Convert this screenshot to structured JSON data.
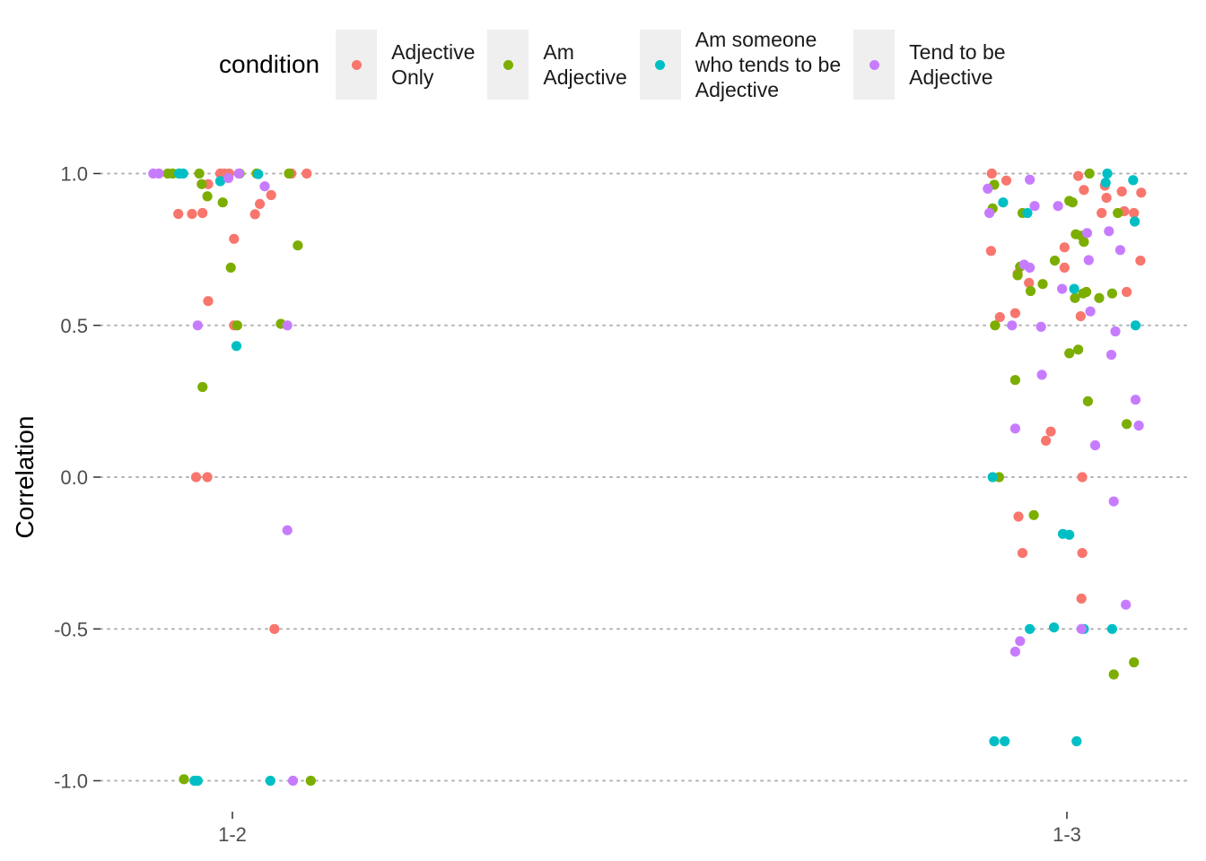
{
  "legend": {
    "title": "condition",
    "items": [
      {
        "label": "Adjective\nOnly",
        "color": "#F8766D"
      },
      {
        "label": "Am\nAdjective",
        "color": "#7CAE00"
      },
      {
        "label": "Am someone\nwho tends to be\nAdjective",
        "color": "#00BFC4"
      },
      {
        "label": "Tend to be\nAdjective",
        "color": "#C77CFF"
      }
    ]
  },
  "chart_data": {
    "type": "scatter",
    "title": "",
    "xlabel": "",
    "ylabel": "Correlation",
    "categories": [
      "1-2",
      "1-3"
    ],
    "ylim": [
      -1.1,
      1.1
    ],
    "yticks": [
      1.0,
      0.5,
      0.0,
      -0.5,
      -1.0
    ],
    "ytick_labels": [
      "1.0",
      "0.5",
      "0.0",
      "-0.5",
      "-1.0"
    ],
    "grid": "horizontal dotted at y ticks",
    "legend_position": "top",
    "series": [
      {
        "name": "Adjective Only",
        "color": "#F8766D",
        "points": [
          [
            "1-2",
            -0.067,
            0.867
          ],
          [
            "1-2",
            -0.05,
            0.867
          ],
          [
            "1-2",
            -0.037,
            0.87
          ],
          [
            "1-2",
            -0.03,
            0.58
          ],
          [
            "1-2",
            -0.03,
            0.965
          ],
          [
            "1-2",
            -0.045,
            0.0
          ],
          [
            "1-2",
            -0.031,
            0.0
          ],
          [
            "1-2",
            -0.015,
            1.0
          ],
          [
            "1-2",
            -0.01,
            1.0
          ],
          [
            "1-2",
            -0.004,
            1.0
          ],
          [
            "1-2",
            0.002,
            0.785
          ],
          [
            "1-2",
            0.002,
            0.5
          ],
          [
            "1-2",
            0.028,
            0.866
          ],
          [
            "1-2",
            0.034,
            0.9
          ],
          [
            "1-2",
            0.048,
            0.929
          ],
          [
            "1-2",
            0.073,
            1.0
          ],
          [
            "1-2",
            0.092,
            1.0
          ],
          [
            "1-2",
            0.052,
            -0.5
          ],
          [
            "1-3",
            -0.094,
            0.745
          ],
          [
            "1-3",
            -0.093,
            1.0
          ],
          [
            "1-3",
            -0.083,
            0.527
          ],
          [
            "1-3",
            -0.075,
            0.977
          ],
          [
            "1-3",
            -0.06,
            -0.13
          ],
          [
            "1-3",
            -0.061,
            0.67
          ],
          [
            "1-3",
            -0.064,
            0.54
          ],
          [
            "1-3",
            -0.055,
            -0.25
          ],
          [
            "1-3",
            -0.047,
            0.64
          ],
          [
            "1-3",
            -0.02,
            0.15
          ],
          [
            "1-3",
            -0.026,
            0.12
          ],
          [
            "1-3",
            -0.003,
            0.69
          ],
          [
            "1-3",
            -0.003,
            0.757
          ],
          [
            "1-3",
            0.017,
            0.53
          ],
          [
            "1-3",
            0.014,
            0.992
          ],
          [
            "1-3",
            0.021,
            0.946
          ],
          [
            "1-3",
            0.019,
            0.0
          ],
          [
            "1-3",
            0.019,
            -0.25
          ],
          [
            "1-3",
            0.018,
            -0.4
          ],
          [
            "1-3",
            0.043,
            0.87
          ],
          [
            "1-3",
            0.047,
            0.96
          ],
          [
            "1-3",
            0.049,
            0.92
          ],
          [
            "1-3",
            0.068,
            0.941
          ],
          [
            "1-3",
            0.071,
            0.876
          ],
          [
            "1-3",
            0.074,
            0.61
          ],
          [
            "1-3",
            0.083,
            0.87
          ],
          [
            "1-3",
            0.092,
            0.937
          ],
          [
            "1-3",
            0.091,
            0.713
          ]
        ]
      },
      {
        "name": "Am Adjective",
        "color": "#7CAE00",
        "points": [
          [
            "1-2",
            -0.08,
            1.0
          ],
          [
            "1-2",
            -0.074,
            1.0
          ],
          [
            "1-2",
            -0.066,
            1.0
          ],
          [
            "1-2",
            -0.041,
            1.0
          ],
          [
            "1-2",
            -0.038,
            0.965
          ],
          [
            "1-2",
            -0.037,
            0.297
          ],
          [
            "1-2",
            -0.031,
            0.925
          ],
          [
            "1-2",
            -0.012,
            0.905
          ],
          [
            "1-2",
            -0.002,
            0.69
          ],
          [
            "1-2",
            0.006,
            0.5
          ],
          [
            "1-2",
            0.009,
            1.0
          ],
          [
            "1-2",
            0.03,
            1.0
          ],
          [
            "1-2",
            0.07,
            1.0
          ],
          [
            "1-2",
            0.06,
            0.505
          ],
          [
            "1-2",
            0.081,
            0.763
          ],
          [
            "1-2",
            0.097,
            -1.0
          ],
          [
            "1-2",
            -0.06,
            -0.995
          ],
          [
            "1-3",
            -0.09,
            0.963
          ],
          [
            "1-3",
            -0.092,
            0.885
          ],
          [
            "1-3",
            -0.089,
            0.5
          ],
          [
            "1-3",
            -0.084,
            0.0
          ],
          [
            "1-3",
            -0.064,
            0.32
          ],
          [
            "1-3",
            -0.061,
            0.665
          ],
          [
            "1-3",
            -0.058,
            0.693
          ],
          [
            "1-3",
            -0.055,
            0.87
          ],
          [
            "1-3",
            -0.045,
            0.613
          ],
          [
            "1-3",
            -0.041,
            -0.125
          ],
          [
            "1-3",
            -0.03,
            0.636
          ],
          [
            "1-3",
            -0.015,
            0.713
          ],
          [
            "1-3",
            0.003,
            0.408
          ],
          [
            "1-3",
            0.003,
            0.91
          ],
          [
            "1-3",
            0.007,
            0.905
          ],
          [
            "1-3",
            0.01,
            0.59
          ],
          [
            "1-3",
            0.011,
            0.8
          ],
          [
            "1-3",
            0.014,
            0.42
          ],
          [
            "1-3",
            0.018,
            0.795
          ],
          [
            "1-3",
            0.02,
            0.605
          ],
          [
            "1-3",
            0.021,
            0.775
          ],
          [
            "1-3",
            0.024,
            0.61
          ],
          [
            "1-3",
            0.026,
            0.25
          ],
          [
            "1-3",
            0.028,
            1.0
          ],
          [
            "1-3",
            0.04,
            0.59
          ],
          [
            "1-3",
            0.056,
            0.605
          ],
          [
            "1-3",
            0.058,
            -0.65
          ],
          [
            "1-3",
            0.063,
            0.87
          ],
          [
            "1-3",
            0.074,
            0.175
          ],
          [
            "1-3",
            0.083,
            -0.61
          ]
        ]
      },
      {
        "name": "Am someone who tends to be Adjective",
        "color": "#00BFC4",
        "points": [
          [
            "1-2",
            -0.066,
            1.0
          ],
          [
            "1-2",
            -0.061,
            1.0
          ],
          [
            "1-2",
            -0.015,
            0.975
          ],
          [
            "1-2",
            0.032,
            0.998
          ],
          [
            "1-2",
            0.005,
            0.432
          ],
          [
            "1-2",
            -0.047,
            -1.0
          ],
          [
            "1-2",
            -0.043,
            -1.0
          ],
          [
            "1-2",
            0.047,
            -1.0
          ],
          [
            "1-3",
            -0.092,
            0.0
          ],
          [
            "1-3",
            -0.09,
            -0.87
          ],
          [
            "1-3",
            -0.077,
            -0.87
          ],
          [
            "1-3",
            -0.079,
            0.905
          ],
          [
            "1-3",
            -0.049,
            0.87
          ],
          [
            "1-3",
            -0.046,
            -0.5
          ],
          [
            "1-3",
            -0.016,
            -0.495
          ],
          [
            "1-3",
            -0.005,
            -0.187
          ],
          [
            "1-3",
            0.003,
            -0.19
          ],
          [
            "1-3",
            0.012,
            -0.87
          ],
          [
            "1-3",
            0.021,
            -0.5
          ],
          [
            "1-3",
            0.009,
            0.62
          ],
          [
            "1-3",
            0.048,
            0.97
          ],
          [
            "1-3",
            0.05,
            1.0
          ],
          [
            "1-3",
            0.056,
            -0.5
          ],
          [
            "1-3",
            0.082,
            0.978
          ],
          [
            "1-3",
            0.084,
            0.842
          ],
          [
            "1-3",
            0.085,
            0.5
          ]
        ]
      },
      {
        "name": "Tend to be Adjective",
        "color": "#C77CFF",
        "points": [
          [
            "1-2",
            -0.098,
            1.0
          ],
          [
            "1-2",
            -0.091,
            1.0
          ],
          [
            "1-2",
            -0.043,
            0.5
          ],
          [
            "1-2",
            -0.005,
            0.985
          ],
          [
            "1-2",
            0.008,
            1.0
          ],
          [
            "1-2",
            0.04,
            0.958
          ],
          [
            "1-2",
            0.068,
            0.5
          ],
          [
            "1-2",
            0.068,
            -0.175
          ],
          [
            "1-2",
            0.075,
            -1.0
          ],
          [
            "1-3",
            -0.098,
            0.95
          ],
          [
            "1-3",
            -0.096,
            0.87
          ],
          [
            "1-3",
            -0.068,
            0.5
          ],
          [
            "1-3",
            -0.064,
            0.16
          ],
          [
            "1-3",
            -0.064,
            -0.575
          ],
          [
            "1-3",
            -0.058,
            -0.54
          ],
          [
            "1-3",
            -0.053,
            0.7
          ],
          [
            "1-3",
            -0.046,
            0.98
          ],
          [
            "1-3",
            -0.046,
            0.69
          ],
          [
            "1-3",
            -0.04,
            0.893
          ],
          [
            "1-3",
            -0.032,
            0.495
          ],
          [
            "1-3",
            -0.031,
            0.337
          ],
          [
            "1-3",
            -0.011,
            0.893
          ],
          [
            "1-3",
            -0.006,
            0.62
          ],
          [
            "1-3",
            0.018,
            -0.5
          ],
          [
            "1-3",
            0.025,
            0.804
          ],
          [
            "1-3",
            0.027,
            0.715
          ],
          [
            "1-3",
            0.029,
            0.546
          ],
          [
            "1-3",
            0.035,
            0.105
          ],
          [
            "1-3",
            0.052,
            0.81
          ],
          [
            "1-3",
            0.055,
            0.403
          ],
          [
            "1-3",
            0.058,
            -0.08
          ],
          [
            "1-3",
            0.06,
            0.48
          ],
          [
            "1-3",
            0.066,
            0.748
          ],
          [
            "1-3",
            0.073,
            -0.42
          ],
          [
            "1-3",
            0.085,
            0.255
          ],
          [
            "1-3",
            0.089,
            0.17
          ]
        ]
      }
    ]
  }
}
